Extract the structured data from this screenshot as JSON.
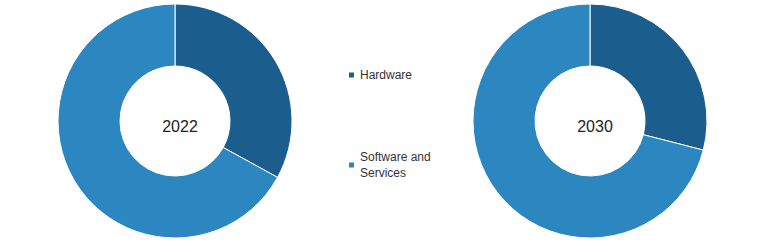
{
  "chart_data": [
    {
      "type": "pie",
      "title": "2022",
      "categories": [
        "Hardware",
        "Software and Services"
      ],
      "values": [
        33,
        67
      ],
      "colors": [
        "#1b5e8e",
        "#2c86bf"
      ],
      "legend": "center"
    },
    {
      "type": "pie",
      "title": "2030",
      "categories": [
        "Hardware",
        "Software and Services"
      ],
      "values": [
        29,
        71
      ],
      "colors": [
        "#1b5e8e",
        "#2c86bf"
      ],
      "legend": "center"
    }
  ]
}
